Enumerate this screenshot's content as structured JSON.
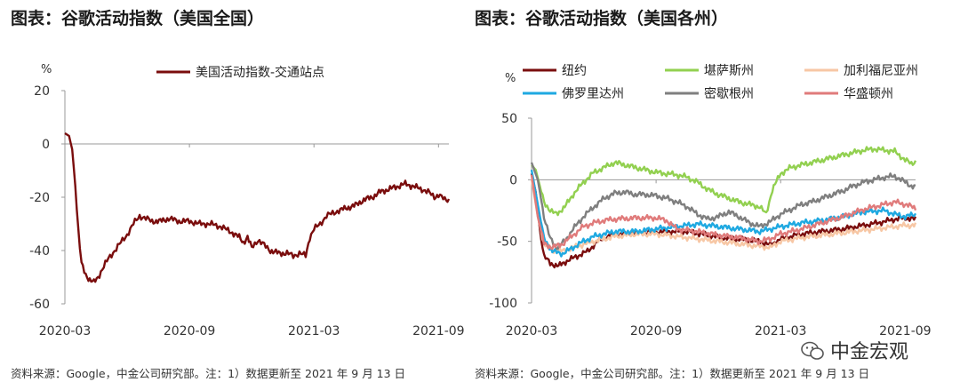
{
  "titles": {
    "left": "图表：谷歌活动指数（美国全国）",
    "right": "图表：谷歌活动指数（美国各州）"
  },
  "sources": {
    "left": "资料来源：Google，中金公司研究部。注：1）数据更新至 2021 年 9 月 13 日",
    "right": "资料来源：Google，中金公司研究部。注：1）数据更新至 2021 年 9 月 13 日"
  },
  "watermark": "中金宏观",
  "colors": {
    "national": "#7a0d0d",
    "纽约": "#7a0d0d",
    "堪萨斯州": "#92d050",
    "加利福尼亚州": "#f7c7a5",
    "佛罗里达州": "#1fa9e1",
    "密歇根州": "#7f7f7f",
    "华盛顿州": "#e07b7b"
  },
  "chart_data": [
    {
      "type": "line",
      "title": "图表：谷歌活动指数（美国全国）",
      "unit": "%",
      "ylim": [
        -60,
        20
      ],
      "yticks": [
        20,
        0,
        -20,
        -40,
        -60
      ],
      "xlim": [
        0,
        18.5
      ],
      "xticks": [
        {
          "pos": 0,
          "label": "2020-03"
        },
        {
          "pos": 6,
          "label": "2020-09"
        },
        {
          "pos": 12,
          "label": "2021-03"
        },
        {
          "pos": 18,
          "label": "2021-09"
        }
      ],
      "legend": "top",
      "series": [
        {
          "name": "美国活动指数-交通站点",
          "color_key": "national",
          "points": [
            [
              0,
              4
            ],
            [
              0.2,
              3
            ],
            [
              0.35,
              -2
            ],
            [
              0.5,
              -15
            ],
            [
              0.65,
              -33
            ],
            [
              0.8,
              -45
            ],
            [
              1.0,
              -49
            ],
            [
              1.2,
              -51
            ],
            [
              1.4,
              -52
            ],
            [
              1.6,
              -50
            ],
            [
              1.8,
              -47
            ],
            [
              2.1,
              -43
            ],
            [
              2.4,
              -40
            ],
            [
              2.7,
              -37
            ],
            [
              3.0,
              -34
            ],
            [
              3.3,
              -30
            ],
            [
              3.6,
              -27
            ],
            [
              3.9,
              -28
            ],
            [
              4.2,
              -29
            ],
            [
              4.6,
              -29
            ],
            [
              5.0,
              -28
            ],
            [
              5.5,
              -29
            ],
            [
              6.0,
              -29
            ],
            [
              6.5,
              -30
            ],
            [
              7.0,
              -30
            ],
            [
              7.5,
              -31
            ],
            [
              8.0,
              -33
            ],
            [
              8.4,
              -35
            ],
            [
              8.6,
              -37
            ],
            [
              8.8,
              -35
            ],
            [
              9.0,
              -39
            ],
            [
              9.3,
              -36
            ],
            [
              9.6,
              -38
            ],
            [
              9.9,
              -40
            ],
            [
              10.3,
              -41
            ],
            [
              10.7,
              -41
            ],
            [
              11.0,
              -42
            ],
            [
              11.3,
              -41
            ],
            [
              11.6,
              -42
            ],
            [
              11.8,
              -35
            ],
            [
              12.0,
              -32
            ],
            [
              12.3,
              -30
            ],
            [
              12.6,
              -27
            ],
            [
              12.9,
              -26
            ],
            [
              13.2,
              -25
            ],
            [
              13.6,
              -24
            ],
            [
              14.0,
              -23
            ],
            [
              14.4,
              -21
            ],
            [
              14.8,
              -20
            ],
            [
              15.2,
              -18
            ],
            [
              15.6,
              -17
            ],
            [
              16.0,
              -16
            ],
            [
              16.4,
              -15
            ],
            [
              16.8,
              -16
            ],
            [
              17.2,
              -17
            ],
            [
              17.5,
              -18
            ],
            [
              17.8,
              -20
            ],
            [
              18.0,
              -19
            ],
            [
              18.3,
              -21
            ],
            [
              18.5,
              -21
            ]
          ]
        }
      ]
    },
    {
      "type": "line",
      "title": "图表：谷歌活动指数（美国各州）",
      "unit": "%",
      "ylim": [
        -100,
        50
      ],
      "yticks": [
        50,
        0,
        -50,
        -100
      ],
      "xlim": [
        0,
        18.5
      ],
      "xticks": [
        {
          "pos": 0,
          "label": "2020-03"
        },
        {
          "pos": 6,
          "label": "2020-09"
        },
        {
          "pos": 12,
          "label": "2021-03"
        },
        {
          "pos": 18,
          "label": "2021-09"
        }
      ],
      "legend": "top",
      "series": [
        {
          "name": "纽约",
          "color_key": "纽约",
          "points": [
            [
              0,
              5
            ],
            [
              0.2,
              -10
            ],
            [
              0.4,
              -40
            ],
            [
              0.6,
              -62
            ],
            [
              0.9,
              -68
            ],
            [
              1.3,
              -70
            ],
            [
              1.7,
              -66
            ],
            [
              2.2,
              -62
            ],
            [
              2.7,
              -58
            ],
            [
              3.2,
              -50
            ],
            [
              3.8,
              -45
            ],
            [
              4.5,
              -44
            ],
            [
              5.5,
              -43
            ],
            [
              6.5,
              -42
            ],
            [
              7.5,
              -42
            ],
            [
              8.5,
              -45
            ],
            [
              9.2,
              -47
            ],
            [
              10.0,
              -48
            ],
            [
              11.0,
              -50
            ],
            [
              11.5,
              -53
            ],
            [
              12.0,
              -48
            ],
            [
              12.5,
              -46
            ],
            [
              13.0,
              -44
            ],
            [
              14.0,
              -42
            ],
            [
              15.0,
              -40
            ],
            [
              16.0,
              -37
            ],
            [
              17.0,
              -34
            ],
            [
              17.5,
              -32
            ],
            [
              18.0,
              -31
            ],
            [
              18.5,
              -32
            ]
          ]
        },
        {
          "name": "堪萨斯州",
          "color_key": "堪萨斯州",
          "points": [
            [
              0,
              12
            ],
            [
              0.2,
              8
            ],
            [
              0.4,
              -5
            ],
            [
              0.6,
              -18
            ],
            [
              0.9,
              -25
            ],
            [
              1.2,
              -28
            ],
            [
              1.6,
              -22
            ],
            [
              2.0,
              -12
            ],
            [
              2.5,
              -2
            ],
            [
              3.0,
              6
            ],
            [
              3.5,
              10
            ],
            [
              4.0,
              14
            ],
            [
              4.5,
              12
            ],
            [
              5.0,
              10
            ],
            [
              5.5,
              8
            ],
            [
              6.0,
              6
            ],
            [
              6.5,
              5
            ],
            [
              7.0,
              4
            ],
            [
              7.5,
              2
            ],
            [
              8.0,
              -2
            ],
            [
              8.5,
              -8
            ],
            [
              9.0,
              -12
            ],
            [
              9.5,
              -15
            ],
            [
              10.0,
              -18
            ],
            [
              10.5,
              -20
            ],
            [
              11.0,
              -22
            ],
            [
              11.3,
              -28
            ],
            [
              11.6,
              -8
            ],
            [
              12.0,
              5
            ],
            [
              12.5,
              10
            ],
            [
              13.0,
              12
            ],
            [
              13.5,
              14
            ],
            [
              14.0,
              16
            ],
            [
              14.5,
              18
            ],
            [
              15.0,
              20
            ],
            [
              15.5,
              22
            ],
            [
              16.0,
              24
            ],
            [
              16.5,
              25
            ],
            [
              17.0,
              24
            ],
            [
              17.5,
              23
            ],
            [
              18.0,
              16
            ],
            [
              18.3,
              13
            ],
            [
              18.5,
              15
            ]
          ]
        },
        {
          "name": "加利福尼亚州",
          "color_key": "加利福尼亚州",
          "points": [
            [
              0,
              0
            ],
            [
              0.3,
              -30
            ],
            [
              0.6,
              -52
            ],
            [
              1.0,
              -57
            ],
            [
              1.5,
              -58
            ],
            [
              2.0,
              -55
            ],
            [
              3.0,
              -50
            ],
            [
              4.0,
              -46
            ],
            [
              5.0,
              -44
            ],
            [
              6.0,
              -44
            ],
            [
              7.0,
              -46
            ],
            [
              8.0,
              -48
            ],
            [
              9.0,
              -50
            ],
            [
              10.0,
              -52
            ],
            [
              11.0,
              -54
            ],
            [
              11.5,
              -55
            ],
            [
              12.0,
              -50
            ],
            [
              13.0,
              -47
            ],
            [
              14.0,
              -45
            ],
            [
              15.0,
              -43
            ],
            [
              16.0,
              -41
            ],
            [
              17.0,
              -39
            ],
            [
              18.0,
              -37
            ],
            [
              18.5,
              -37
            ]
          ]
        },
        {
          "name": "佛罗里达州",
          "color_key": "佛罗里达州",
          "points": [
            [
              0,
              8
            ],
            [
              0.3,
              -20
            ],
            [
              0.6,
              -48
            ],
            [
              1.0,
              -58
            ],
            [
              1.5,
              -60
            ],
            [
              2.0,
              -55
            ],
            [
              2.5,
              -50
            ],
            [
              3.0,
              -46
            ],
            [
              4.0,
              -42
            ],
            [
              5.0,
              -42
            ],
            [
              6.0,
              -40
            ],
            [
              7.0,
              -38
            ],
            [
              8.0,
              -36
            ],
            [
              9.0,
              -38
            ],
            [
              10.0,
              -40
            ],
            [
              11.0,
              -42
            ],
            [
              11.5,
              -40
            ],
            [
              12.0,
              -38
            ],
            [
              13.0,
              -35
            ],
            [
              14.0,
              -33
            ],
            [
              15.0,
              -30
            ],
            [
              16.0,
              -26
            ],
            [
              17.0,
              -25
            ],
            [
              17.5,
              -28
            ],
            [
              18.0,
              -30
            ],
            [
              18.5,
              -28
            ]
          ]
        },
        {
          "name": "密歇根州",
          "color_key": "密歇根州",
          "points": [
            [
              0,
              14
            ],
            [
              0.3,
              0
            ],
            [
              0.6,
              -30
            ],
            [
              0.9,
              -48
            ],
            [
              1.2,
              -55
            ],
            [
              1.6,
              -50
            ],
            [
              2.0,
              -40
            ],
            [
              2.5,
              -30
            ],
            [
              3.0,
              -22
            ],
            [
              3.5,
              -15
            ],
            [
              4.0,
              -11
            ],
            [
              4.5,
              -10
            ],
            [
              5.0,
              -12
            ],
            [
              5.5,
              -12
            ],
            [
              6.0,
              -13
            ],
            [
              6.5,
              -15
            ],
            [
              7.0,
              -18
            ],
            [
              7.5,
              -22
            ],
            [
              8.0,
              -28
            ],
            [
              8.5,
              -32
            ],
            [
              9.0,
              -30
            ],
            [
              9.5,
              -26
            ],
            [
              10.0,
              -30
            ],
            [
              10.5,
              -35
            ],
            [
              11.0,
              -38
            ],
            [
              11.5,
              -34
            ],
            [
              12.0,
              -28
            ],
            [
              12.5,
              -24
            ],
            [
              13.0,
              -20
            ],
            [
              13.5,
              -18
            ],
            [
              14.0,
              -15
            ],
            [
              14.5,
              -12
            ],
            [
              15.0,
              -9
            ],
            [
              15.5,
              -5
            ],
            [
              16.0,
              -2
            ],
            [
              16.5,
              0
            ],
            [
              17.0,
              2
            ],
            [
              17.5,
              3
            ],
            [
              18.0,
              -2
            ],
            [
              18.3,
              -5
            ],
            [
              18.5,
              -6
            ]
          ]
        },
        {
          "name": "华盛顿州",
          "color_key": "华盛顿州",
          "points": [
            [
              0,
              4
            ],
            [
              0.3,
              -30
            ],
            [
              0.6,
              -52
            ],
            [
              1.0,
              -55
            ],
            [
              1.5,
              -52
            ],
            [
              2.0,
              -45
            ],
            [
              2.5,
              -38
            ],
            [
              3.0,
              -35
            ],
            [
              3.5,
              -33
            ],
            [
              4.0,
              -32
            ],
            [
              5.0,
              -31
            ],
            [
              6.0,
              -31
            ],
            [
              6.5,
              -33
            ],
            [
              7.0,
              -40
            ],
            [
              8.0,
              -42
            ],
            [
              9.0,
              -45
            ],
            [
              10.0,
              -47
            ],
            [
              11.0,
              -50
            ],
            [
              11.5,
              -48
            ],
            [
              12.0,
              -44
            ],
            [
              13.0,
              -40
            ],
            [
              14.0,
              -35
            ],
            [
              15.0,
              -30
            ],
            [
              16.0,
              -24
            ],
            [
              17.0,
              -20
            ],
            [
              17.5,
              -18
            ],
            [
              18.0,
              -20
            ],
            [
              18.5,
              -23
            ]
          ]
        }
      ]
    }
  ]
}
